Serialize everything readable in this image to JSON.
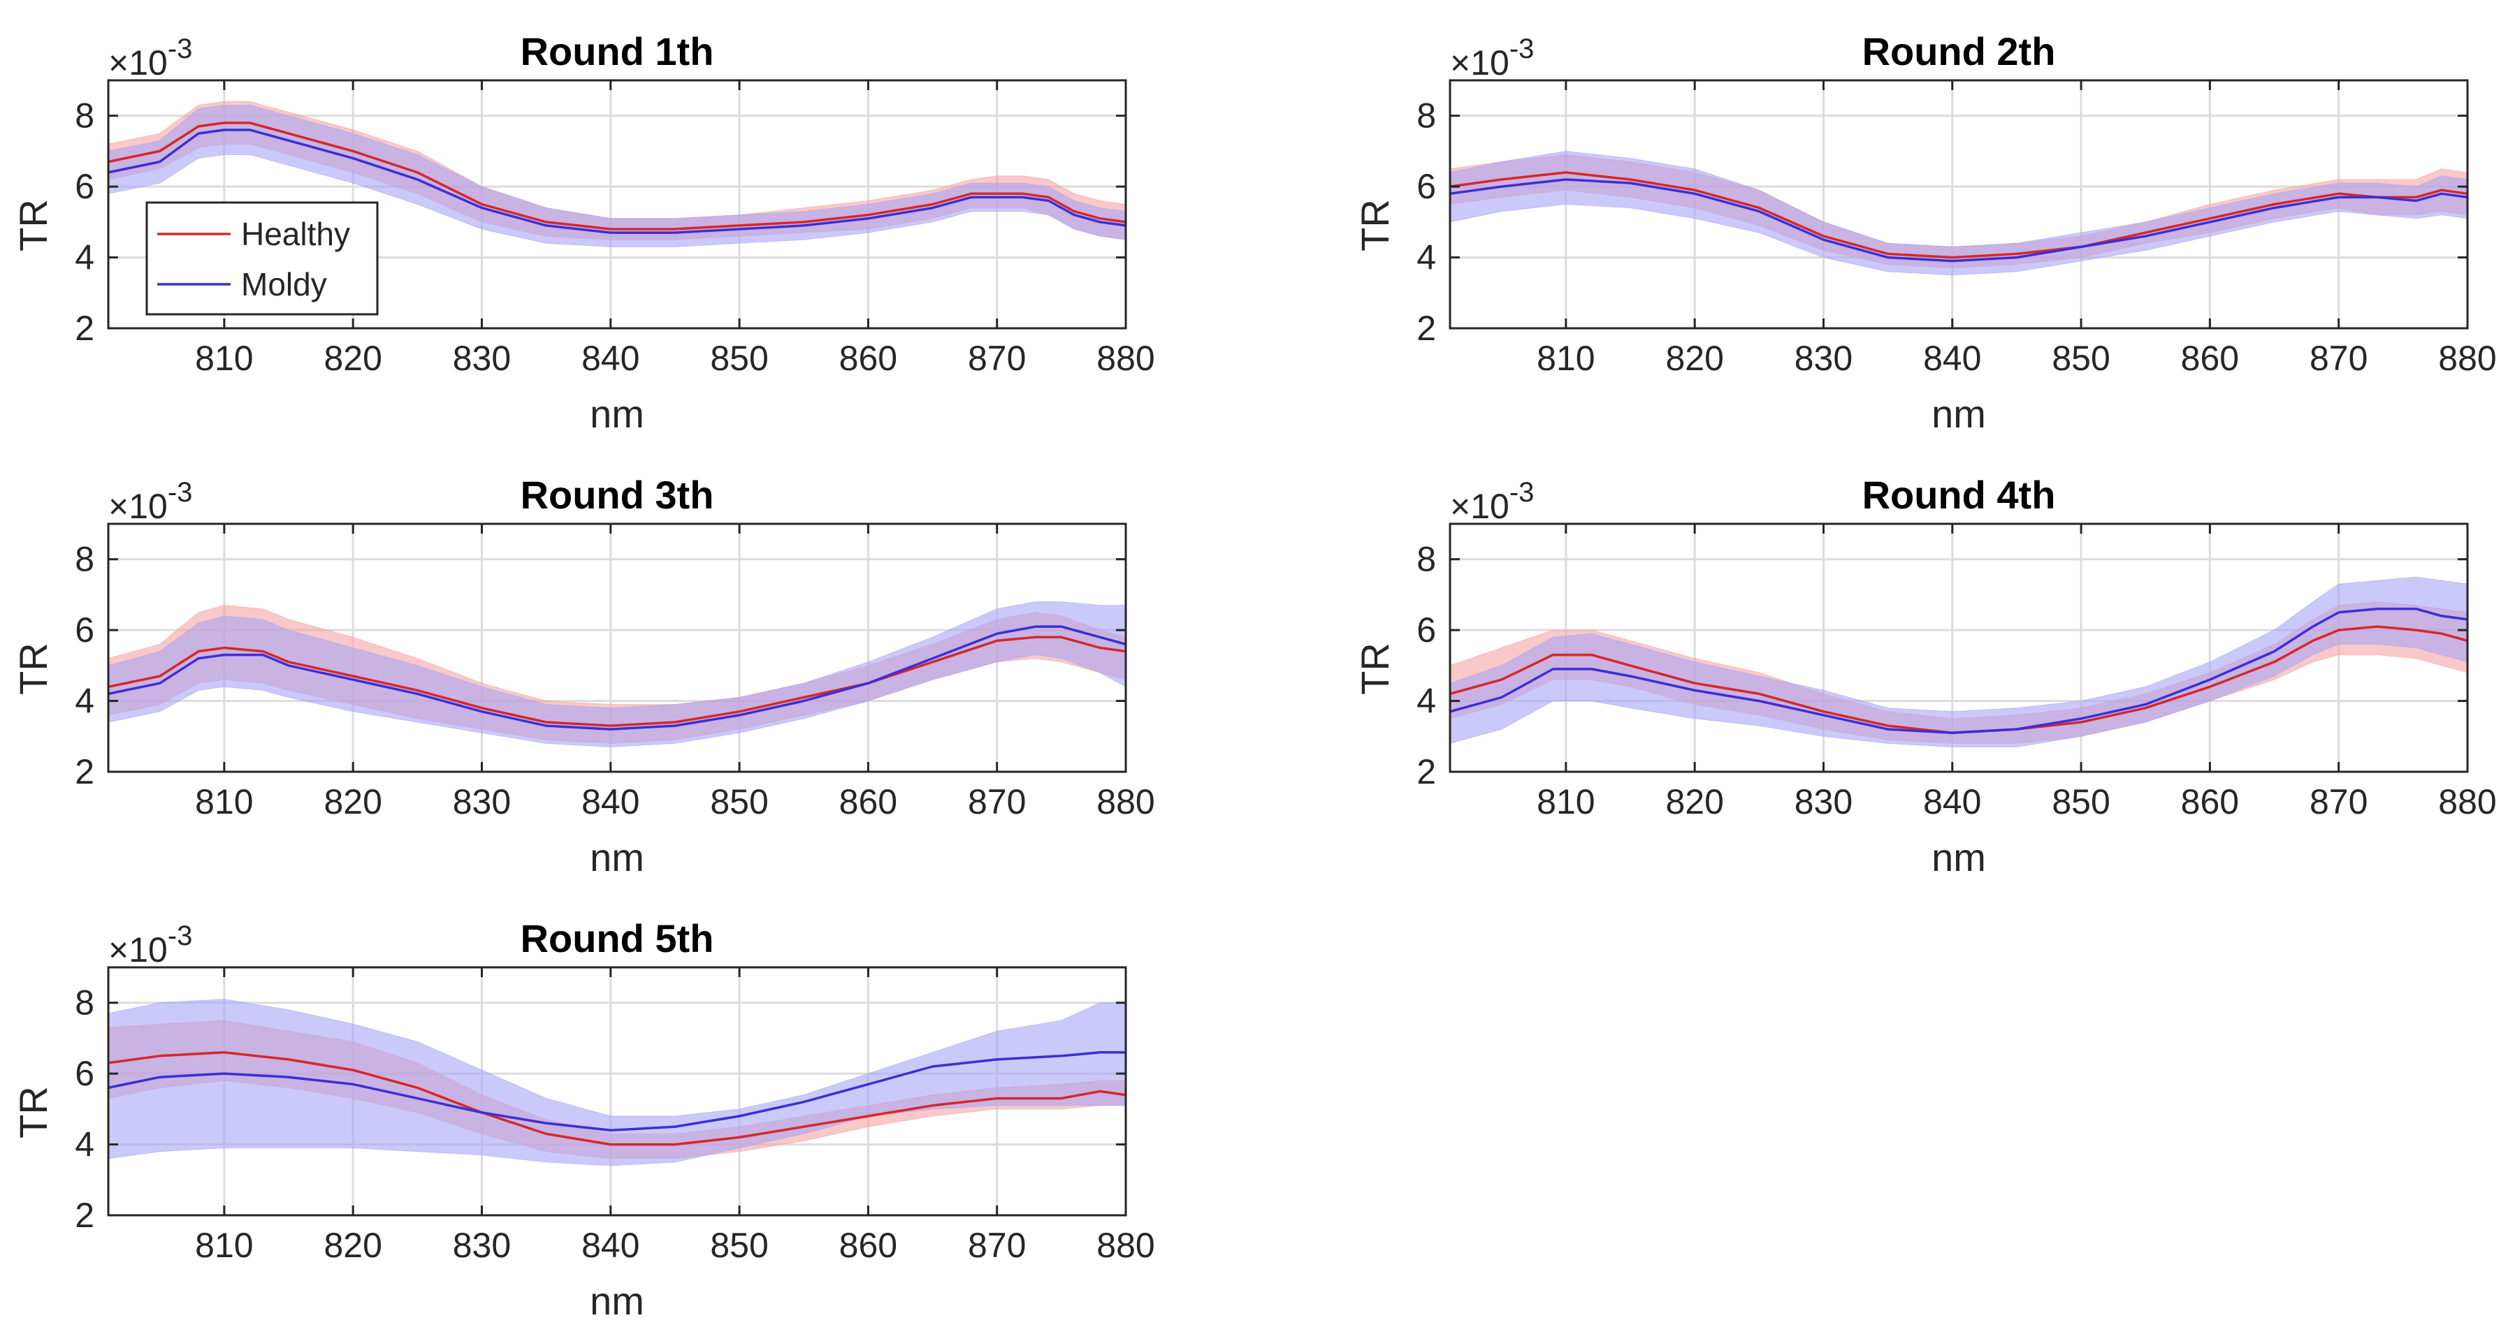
{
  "figure_colors": {
    "healthy": "#d62728",
    "moldy": "#3b2fd6",
    "healthy_band": "#f5a3a3",
    "moldy_band": "#a9a5f5",
    "grid": "#dcdcdc",
    "axis": "#262626"
  },
  "chart_data": [
    {
      "type": "line",
      "title": "Round 1th",
      "xlabel": "nm",
      "ylabel": "TR",
      "scale_label": "×10",
      "scale_exp": "-3",
      "xlim": [
        801,
        880
      ],
      "ylim": [
        2,
        9
      ],
      "xticks": [
        810,
        820,
        830,
        840,
        850,
        860,
        870,
        880
      ],
      "yticks": [
        2,
        4,
        6,
        8
      ],
      "grid": true,
      "legend": {
        "position": "bottom-left",
        "entries": [
          "Healthy",
          "Moldy"
        ]
      },
      "x": [
        801,
        805,
        808,
        810,
        812,
        815,
        820,
        825,
        830,
        835,
        840,
        845,
        850,
        855,
        860,
        865,
        868,
        870,
        872,
        874,
        876,
        878,
        880
      ],
      "series": [
        {
          "name": "Healthy",
          "values": [
            6.7,
            7.0,
            7.7,
            7.8,
            7.8,
            7.5,
            7.0,
            6.4,
            5.5,
            5.0,
            4.8,
            4.8,
            4.9,
            5.0,
            5.2,
            5.5,
            5.8,
            5.8,
            5.8,
            5.7,
            5.3,
            5.1,
            5.0
          ],
          "upper": [
            7.2,
            7.5,
            8.3,
            8.4,
            8.4,
            8.1,
            7.6,
            7.0,
            6.0,
            5.4,
            5.1,
            5.1,
            5.2,
            5.4,
            5.6,
            5.9,
            6.2,
            6.3,
            6.3,
            6.2,
            5.8,
            5.6,
            5.5
          ],
          "lower": [
            6.2,
            6.5,
            7.1,
            7.2,
            7.2,
            6.9,
            6.4,
            5.8,
            5.0,
            4.6,
            4.5,
            4.5,
            4.6,
            4.7,
            4.8,
            5.1,
            5.4,
            5.4,
            5.4,
            5.2,
            4.8,
            4.6,
            4.5
          ]
        },
        {
          "name": "Moldy",
          "values": [
            6.4,
            6.7,
            7.5,
            7.6,
            7.6,
            7.3,
            6.8,
            6.2,
            5.4,
            4.9,
            4.7,
            4.7,
            4.8,
            4.9,
            5.1,
            5.4,
            5.7,
            5.7,
            5.7,
            5.6,
            5.2,
            5.0,
            4.9
          ],
          "upper": [
            7.0,
            7.3,
            8.2,
            8.3,
            8.3,
            8.0,
            7.5,
            6.9,
            6.0,
            5.4,
            5.1,
            5.1,
            5.2,
            5.3,
            5.5,
            5.8,
            6.1,
            6.1,
            6.1,
            6.0,
            5.6,
            5.4,
            5.3
          ],
          "lower": [
            5.8,
            6.1,
            6.8,
            6.9,
            6.9,
            6.6,
            6.1,
            5.5,
            4.8,
            4.4,
            4.3,
            4.3,
            4.4,
            4.5,
            4.7,
            5.0,
            5.3,
            5.3,
            5.3,
            5.2,
            4.8,
            4.6,
            4.5
          ]
        }
      ]
    },
    {
      "type": "line",
      "title": "Round 2th",
      "xlabel": "nm",
      "ylabel": "TR",
      "scale_label": "×10",
      "scale_exp": "-3",
      "xlim": [
        801,
        880
      ],
      "ylim": [
        2,
        9
      ],
      "xticks": [
        810,
        820,
        830,
        840,
        850,
        860,
        870,
        880
      ],
      "yticks": [
        2,
        4,
        6,
        8
      ],
      "grid": true,
      "legend": null,
      "x": [
        801,
        805,
        810,
        815,
        820,
        825,
        830,
        835,
        840,
        845,
        850,
        855,
        860,
        865,
        870,
        873,
        876,
        878,
        880
      ],
      "series": [
        {
          "name": "Healthy",
          "values": [
            6.0,
            6.2,
            6.4,
            6.2,
            5.9,
            5.4,
            4.6,
            4.1,
            4.0,
            4.1,
            4.3,
            4.7,
            5.1,
            5.5,
            5.8,
            5.7,
            5.7,
            5.9,
            5.8
          ],
          "upper": [
            6.5,
            6.7,
            6.9,
            6.7,
            6.4,
            5.9,
            5.0,
            4.4,
            4.3,
            4.4,
            4.6,
            5.0,
            5.5,
            5.9,
            6.2,
            6.2,
            6.2,
            6.5,
            6.4
          ],
          "lower": [
            5.5,
            5.7,
            5.9,
            5.7,
            5.4,
            4.9,
            4.2,
            3.8,
            3.7,
            3.8,
            4.0,
            4.4,
            4.7,
            5.1,
            5.4,
            5.2,
            5.2,
            5.3,
            5.2
          ]
        },
        {
          "name": "Moldy",
          "values": [
            5.8,
            6.0,
            6.2,
            6.1,
            5.8,
            5.3,
            4.5,
            4.0,
            3.9,
            4.0,
            4.3,
            4.6,
            5.0,
            5.4,
            5.7,
            5.7,
            5.6,
            5.8,
            5.7
          ],
          "upper": [
            6.4,
            6.7,
            7.0,
            6.8,
            6.5,
            5.9,
            5.0,
            4.4,
            4.3,
            4.4,
            4.7,
            5.0,
            5.4,
            5.8,
            6.1,
            6.1,
            6.0,
            6.3,
            6.2
          ],
          "lower": [
            5.0,
            5.3,
            5.5,
            5.4,
            5.1,
            4.7,
            4.0,
            3.6,
            3.5,
            3.6,
            3.9,
            4.2,
            4.6,
            5.0,
            5.3,
            5.2,
            5.1,
            5.2,
            5.1
          ]
        }
      ]
    },
    {
      "type": "line",
      "title": "Round 3th",
      "xlabel": "nm",
      "ylabel": "TR",
      "scale_label": "×10",
      "scale_exp": "-3",
      "xlim": [
        801,
        880
      ],
      "ylim": [
        2,
        9
      ],
      "xticks": [
        810,
        820,
        830,
        840,
        850,
        860,
        870,
        880
      ],
      "yticks": [
        2,
        4,
        6,
        8
      ],
      "grid": true,
      "legend": null,
      "x": [
        801,
        805,
        808,
        810,
        813,
        815,
        820,
        825,
        830,
        835,
        840,
        845,
        850,
        855,
        860,
        865,
        870,
        873,
        875,
        878,
        880
      ],
      "series": [
        {
          "name": "Healthy",
          "values": [
            4.4,
            4.7,
            5.4,
            5.5,
            5.4,
            5.1,
            4.7,
            4.3,
            3.8,
            3.4,
            3.3,
            3.4,
            3.7,
            4.1,
            4.5,
            5.1,
            5.7,
            5.8,
            5.8,
            5.5,
            5.4
          ],
          "upper": [
            5.2,
            5.6,
            6.5,
            6.7,
            6.6,
            6.3,
            5.8,
            5.2,
            4.5,
            4.0,
            3.9,
            3.9,
            4.1,
            4.5,
            5.0,
            5.6,
            6.3,
            6.5,
            6.4,
            6.0,
            5.8
          ],
          "lower": [
            3.6,
            3.9,
            4.5,
            4.6,
            4.5,
            4.3,
            3.9,
            3.5,
            3.2,
            2.9,
            2.8,
            2.9,
            3.2,
            3.6,
            4.0,
            4.6,
            5.1,
            5.2,
            5.1,
            4.8,
            4.6
          ]
        },
        {
          "name": "Moldy",
          "values": [
            4.2,
            4.5,
            5.2,
            5.3,
            5.3,
            5.0,
            4.6,
            4.2,
            3.7,
            3.3,
            3.2,
            3.3,
            3.6,
            4.0,
            4.5,
            5.2,
            5.9,
            6.1,
            6.1,
            5.8,
            5.6
          ],
          "upper": [
            5.0,
            5.4,
            6.2,
            6.4,
            6.3,
            6.0,
            5.5,
            5.0,
            4.4,
            3.9,
            3.8,
            3.9,
            4.1,
            4.5,
            5.1,
            5.8,
            6.6,
            6.8,
            6.8,
            6.7,
            6.7
          ],
          "lower": [
            3.4,
            3.7,
            4.3,
            4.4,
            4.3,
            4.1,
            3.7,
            3.4,
            3.1,
            2.8,
            2.7,
            2.8,
            3.1,
            3.5,
            4.0,
            4.6,
            5.1,
            5.3,
            5.2,
            4.8,
            4.4
          ]
        }
      ]
    },
    {
      "type": "line",
      "title": "Round 4th",
      "xlabel": "nm",
      "ylabel": "TR",
      "scale_label": "×10",
      "scale_exp": "-3",
      "xlim": [
        801,
        880
      ],
      "ylim": [
        2,
        9
      ],
      "xticks": [
        810,
        820,
        830,
        840,
        850,
        860,
        870,
        880
      ],
      "yticks": [
        2,
        4,
        6,
        8
      ],
      "grid": true,
      "legend": null,
      "x": [
        801,
        805,
        809,
        812,
        815,
        820,
        825,
        830,
        835,
        840,
        845,
        850,
        855,
        860,
        865,
        868,
        870,
        873,
        876,
        878,
        880
      ],
      "series": [
        {
          "name": "Healthy",
          "values": [
            4.2,
            4.6,
            5.3,
            5.3,
            5.0,
            4.5,
            4.2,
            3.7,
            3.3,
            3.1,
            3.2,
            3.4,
            3.8,
            4.4,
            5.1,
            5.7,
            6.0,
            6.1,
            6.0,
            5.9,
            5.7
          ],
          "upper": [
            5.0,
            5.5,
            6.0,
            6.0,
            5.7,
            5.2,
            4.8,
            4.2,
            3.7,
            3.5,
            3.6,
            3.8,
            4.2,
            4.8,
            5.6,
            6.3,
            6.7,
            6.8,
            6.7,
            6.6,
            6.5
          ],
          "lower": [
            3.5,
            3.9,
            4.6,
            4.6,
            4.4,
            3.9,
            3.6,
            3.2,
            2.9,
            2.8,
            2.8,
            3.0,
            3.4,
            4.0,
            4.6,
            5.1,
            5.3,
            5.3,
            5.2,
            5.0,
            4.8
          ]
        },
        {
          "name": "Moldy",
          "values": [
            3.7,
            4.1,
            4.9,
            4.9,
            4.7,
            4.3,
            4.0,
            3.6,
            3.2,
            3.1,
            3.2,
            3.5,
            3.9,
            4.6,
            5.4,
            6.1,
            6.5,
            6.6,
            6.6,
            6.4,
            6.3
          ],
          "upper": [
            4.5,
            5.0,
            5.8,
            5.9,
            5.6,
            5.1,
            4.7,
            4.3,
            3.8,
            3.7,
            3.8,
            4.0,
            4.4,
            5.1,
            6.0,
            6.8,
            7.3,
            7.4,
            7.5,
            7.4,
            7.3
          ],
          "lower": [
            2.8,
            3.2,
            4.0,
            4.0,
            3.8,
            3.5,
            3.3,
            3.0,
            2.8,
            2.7,
            2.7,
            3.0,
            3.4,
            4.0,
            4.7,
            5.3,
            5.6,
            5.6,
            5.5,
            5.3,
            5.1
          ]
        }
      ]
    },
    {
      "type": "line",
      "title": "Round 5th",
      "xlabel": "nm",
      "ylabel": "TR",
      "scale_label": "×10",
      "scale_exp": "-3",
      "xlim": [
        801,
        880
      ],
      "ylim": [
        2,
        9
      ],
      "xticks": [
        810,
        820,
        830,
        840,
        850,
        860,
        870,
        880
      ],
      "yticks": [
        2,
        4,
        6,
        8
      ],
      "grid": true,
      "legend": null,
      "x": [
        801,
        805,
        810,
        815,
        820,
        825,
        830,
        835,
        840,
        845,
        850,
        855,
        860,
        865,
        870,
        875,
        878,
        880
      ],
      "series": [
        {
          "name": "Healthy",
          "values": [
            6.3,
            6.5,
            6.6,
            6.4,
            6.1,
            5.6,
            4.9,
            4.3,
            4.0,
            4.0,
            4.2,
            4.5,
            4.8,
            5.1,
            5.3,
            5.3,
            5.5,
            5.4
          ],
          "upper": [
            7.3,
            7.4,
            7.5,
            7.2,
            6.9,
            6.3,
            5.4,
            4.7,
            4.3,
            4.3,
            4.5,
            4.8,
            5.1,
            5.4,
            5.6,
            5.7,
            5.8,
            5.8
          ],
          "lower": [
            5.3,
            5.6,
            5.8,
            5.6,
            5.3,
            4.9,
            4.3,
            3.8,
            3.6,
            3.6,
            3.8,
            4.1,
            4.5,
            4.8,
            5.0,
            5.0,
            5.1,
            5.1
          ]
        },
        {
          "name": "Moldy",
          "values": [
            5.6,
            5.9,
            6.0,
            5.9,
            5.7,
            5.3,
            4.9,
            4.6,
            4.4,
            4.5,
            4.8,
            5.2,
            5.7,
            6.2,
            6.4,
            6.5,
            6.6,
            6.6
          ],
          "upper": [
            7.7,
            8.0,
            8.1,
            7.8,
            7.4,
            6.9,
            6.1,
            5.3,
            4.8,
            4.8,
            5.0,
            5.4,
            6.0,
            6.6,
            7.2,
            7.5,
            8.0,
            8.0
          ],
          "lower": [
            3.6,
            3.8,
            3.9,
            3.9,
            3.9,
            3.8,
            3.7,
            3.5,
            3.4,
            3.5,
            3.9,
            4.3,
            4.8,
            5.0,
            5.1,
            5.1,
            5.1,
            5.1
          ]
        }
      ]
    }
  ]
}
